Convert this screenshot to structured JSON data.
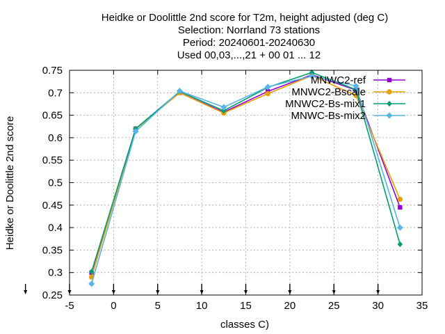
{
  "chart_data": {
    "type": "line",
    "title_lines": [
      "Heidke or Doolittle 2nd score  for T2m, height adjusted (deg C)",
      "Selection: Norrland     73 stations",
      "Period: 20240601-20240630",
      "Used 00,03,...,21 + 00 01 ... 12"
    ],
    "xlabel": "classes C)",
    "ylabel": "Heidke or Doolittle 2nd score",
    "xlim": [
      -5,
      35
    ],
    "ylim": [
      0.25,
      0.75
    ],
    "x_ticks": [
      -5,
      0,
      5,
      10,
      15,
      20,
      25,
      30,
      35
    ],
    "y_ticks": [
      0.25,
      0.3,
      0.35,
      0.4,
      0.45,
      0.5,
      0.55,
      0.6,
      0.65,
      0.7,
      0.75
    ],
    "x_tick_labels": [
      "-5",
      "0",
      "5",
      "10",
      "15",
      "20",
      "25",
      "30",
      "35"
    ],
    "y_tick_labels": [
      "0.25",
      "0.3",
      "0.35",
      "0.4",
      "0.45",
      "0.5",
      "0.55",
      "0.6",
      "0.65",
      "0.7",
      "0.75"
    ],
    "grid": true,
    "legend_position": "top-right",
    "class_arrow_x": [
      -10,
      -5,
      0,
      5,
      10,
      15,
      20,
      25,
      30
    ],
    "x": [
      -2.5,
      2.5,
      7.5,
      12.5,
      17.5,
      22.5,
      27.5,
      32.5
    ],
    "series": [
      {
        "name": "MNWC2-ref",
        "color": "#9400d3",
        "values": [
          0.3,
          0.62,
          0.7,
          0.657,
          0.703,
          0.74,
          0.706,
          0.445
        ]
      },
      {
        "name": "MNWC2-Bscale",
        "color": "#e69f00",
        "values": [
          0.29,
          0.619,
          0.7,
          0.655,
          0.698,
          0.738,
          0.694,
          0.463
        ]
      },
      {
        "name": "MNWC2-Bs-mix1",
        "color": "#009e73",
        "values": [
          0.302,
          0.62,
          0.703,
          0.66,
          0.712,
          0.745,
          0.707,
          0.363
        ]
      },
      {
        "name": "MNWC-Bs-mix2",
        "color": "#56b4e9",
        "values": [
          0.275,
          0.614,
          0.704,
          0.668,
          0.713,
          0.737,
          0.715,
          0.4
        ]
      }
    ]
  }
}
